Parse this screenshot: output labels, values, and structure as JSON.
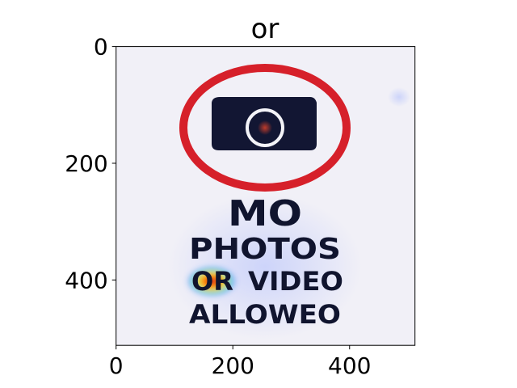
{
  "chart_data": {
    "type": "heatmap",
    "title": "or",
    "xlabel": "",
    "ylabel": "",
    "xlim": [
      0,
      512
    ],
    "ylim": [
      512,
      0
    ],
    "x_ticks": [
      0,
      200,
      400
    ],
    "y_ticks": [
      0,
      200,
      400
    ],
    "grid": false,
    "image_text": {
      "line1": "MO",
      "line2": "PHOTOS",
      "line3_word1": "OR",
      "line3_word2": "VIDEO",
      "line4": "ALLOWEO"
    },
    "hotspots": [
      {
        "label": "OR",
        "x": 160,
        "y": 395,
        "intensity": 1.0
      },
      {
        "label": "lens",
        "x": 255,
        "y": 140,
        "intensity": 0.2
      },
      {
        "label": "MO",
        "x": 255,
        "y": 280,
        "intensity": 0.15
      }
    ],
    "colors": {
      "sign_red": "#d6202a",
      "camera_body": "#121633",
      "text": "#10142e",
      "background": "#f1f0f7"
    }
  }
}
